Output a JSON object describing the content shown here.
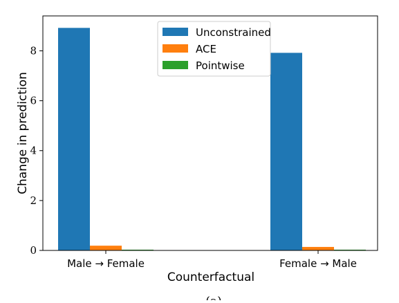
{
  "chart_data": {
    "type": "bar",
    "categories": [
      "Male → Female",
      "Female → Male"
    ],
    "series": [
      {
        "name": "Unconstrained",
        "values": [
          8.92,
          7.92
        ],
        "color": "#1f77b4"
      },
      {
        "name": "ACE",
        "values": [
          0.19,
          0.14
        ],
        "color": "#ff7f0e"
      },
      {
        "name": "Pointwise",
        "values": [
          0.03,
          0.03
        ],
        "color": "#2ca02c"
      }
    ],
    "xlabel": "Counterfactual",
    "ylabel": "Change in prediction",
    "ylim": [
      0,
      9.4
    ],
    "yticks": [
      "0",
      "2",
      "4",
      "6",
      "8"
    ],
    "legend_position": "upper center",
    "grid": false,
    "caption": "(a)"
  }
}
